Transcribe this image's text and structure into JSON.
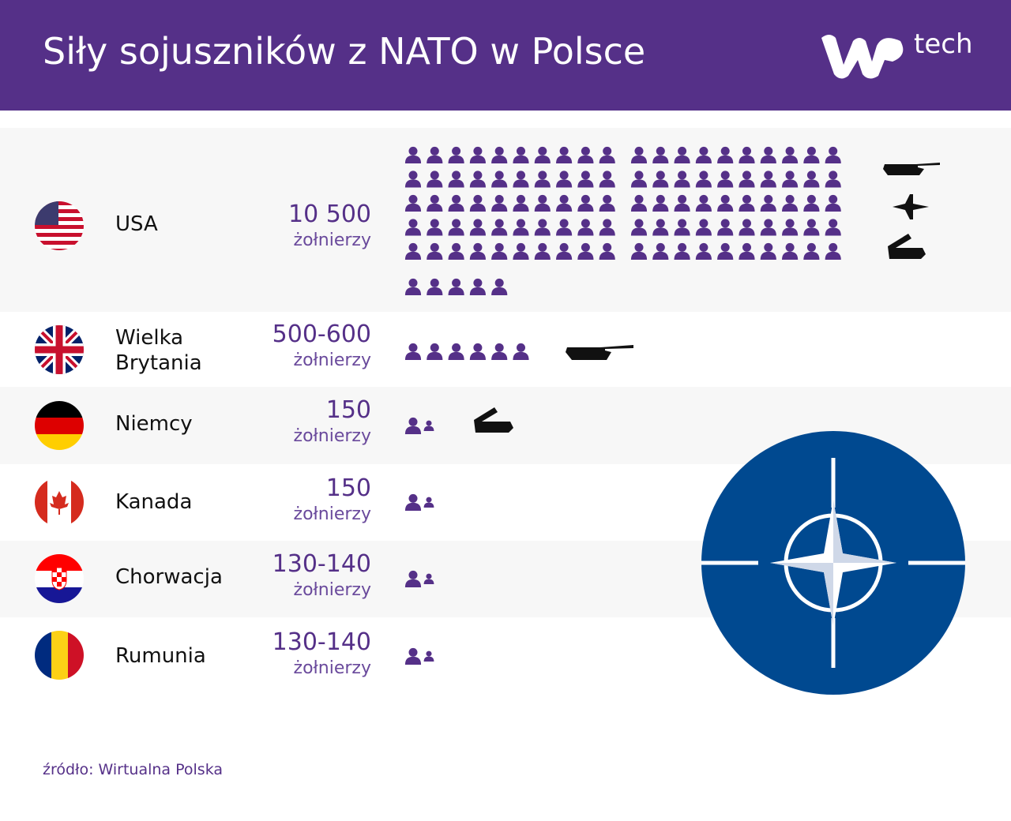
{
  "header": {
    "title": "Siły sojuszników z NATO w Polsce",
    "logo_text": "tech"
  },
  "rows": [
    {
      "name": "USA",
      "number": "10 500",
      "unit": "żołnierzy"
    },
    {
      "name": "Wielka Brytania",
      "number": "500-600",
      "unit": "żołnierzy"
    },
    {
      "name": "Niemcy",
      "number": "150",
      "unit": "żołnierzy"
    },
    {
      "name": "Kanada",
      "number": "150",
      "unit": "żołnierzy"
    },
    {
      "name": "Chorwacja",
      "number": "130-140",
      "unit": "żołnierzy"
    },
    {
      "name": "Rumunia",
      "number": "130-140",
      "unit": "żołnierzy"
    }
  ],
  "source": "źródło: Wirtualna Polska"
}
